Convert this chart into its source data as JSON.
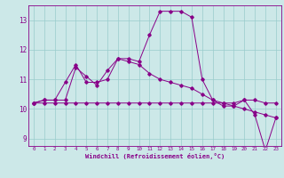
{
  "xlabel": "Windchill (Refroidissement éolien,°C)",
  "x": [
    0,
    1,
    2,
    3,
    4,
    5,
    6,
    7,
    8,
    9,
    10,
    11,
    12,
    13,
    14,
    15,
    16,
    17,
    18,
    19,
    20,
    21,
    22,
    23
  ],
  "line1": [
    10.2,
    10.3,
    10.3,
    10.9,
    11.5,
    10.9,
    10.9,
    11.0,
    11.7,
    11.7,
    11.6,
    12.5,
    13.3,
    13.3,
    13.3,
    13.1,
    11.0,
    10.3,
    10.1,
    10.1,
    10.3,
    9.8,
    8.6,
    9.7
  ],
  "line2": [
    10.2,
    10.3,
    10.3,
    10.3,
    11.4,
    11.1,
    10.8,
    11.3,
    11.7,
    11.6,
    11.5,
    11.2,
    11.0,
    10.9,
    10.8,
    10.7,
    10.5,
    10.3,
    10.2,
    10.1,
    10.0,
    9.9,
    9.8,
    9.7
  ],
  "line3": [
    10.2,
    10.2,
    10.2,
    10.2,
    10.2,
    10.2,
    10.2,
    10.2,
    10.2,
    10.2,
    10.2,
    10.2,
    10.2,
    10.2,
    10.2,
    10.2,
    10.2,
    10.2,
    10.2,
    10.2,
    10.3,
    10.3,
    10.2,
    10.2
  ],
  "line_color": "#880088",
  "bg_color": "#cce8e8",
  "grid_color": "#99cccc",
  "ylim": [
    8.75,
    13.5
  ],
  "yticks": [
    9,
    10,
    11,
    12,
    13
  ],
  "xlim": [
    -0.5,
    23.5
  ]
}
